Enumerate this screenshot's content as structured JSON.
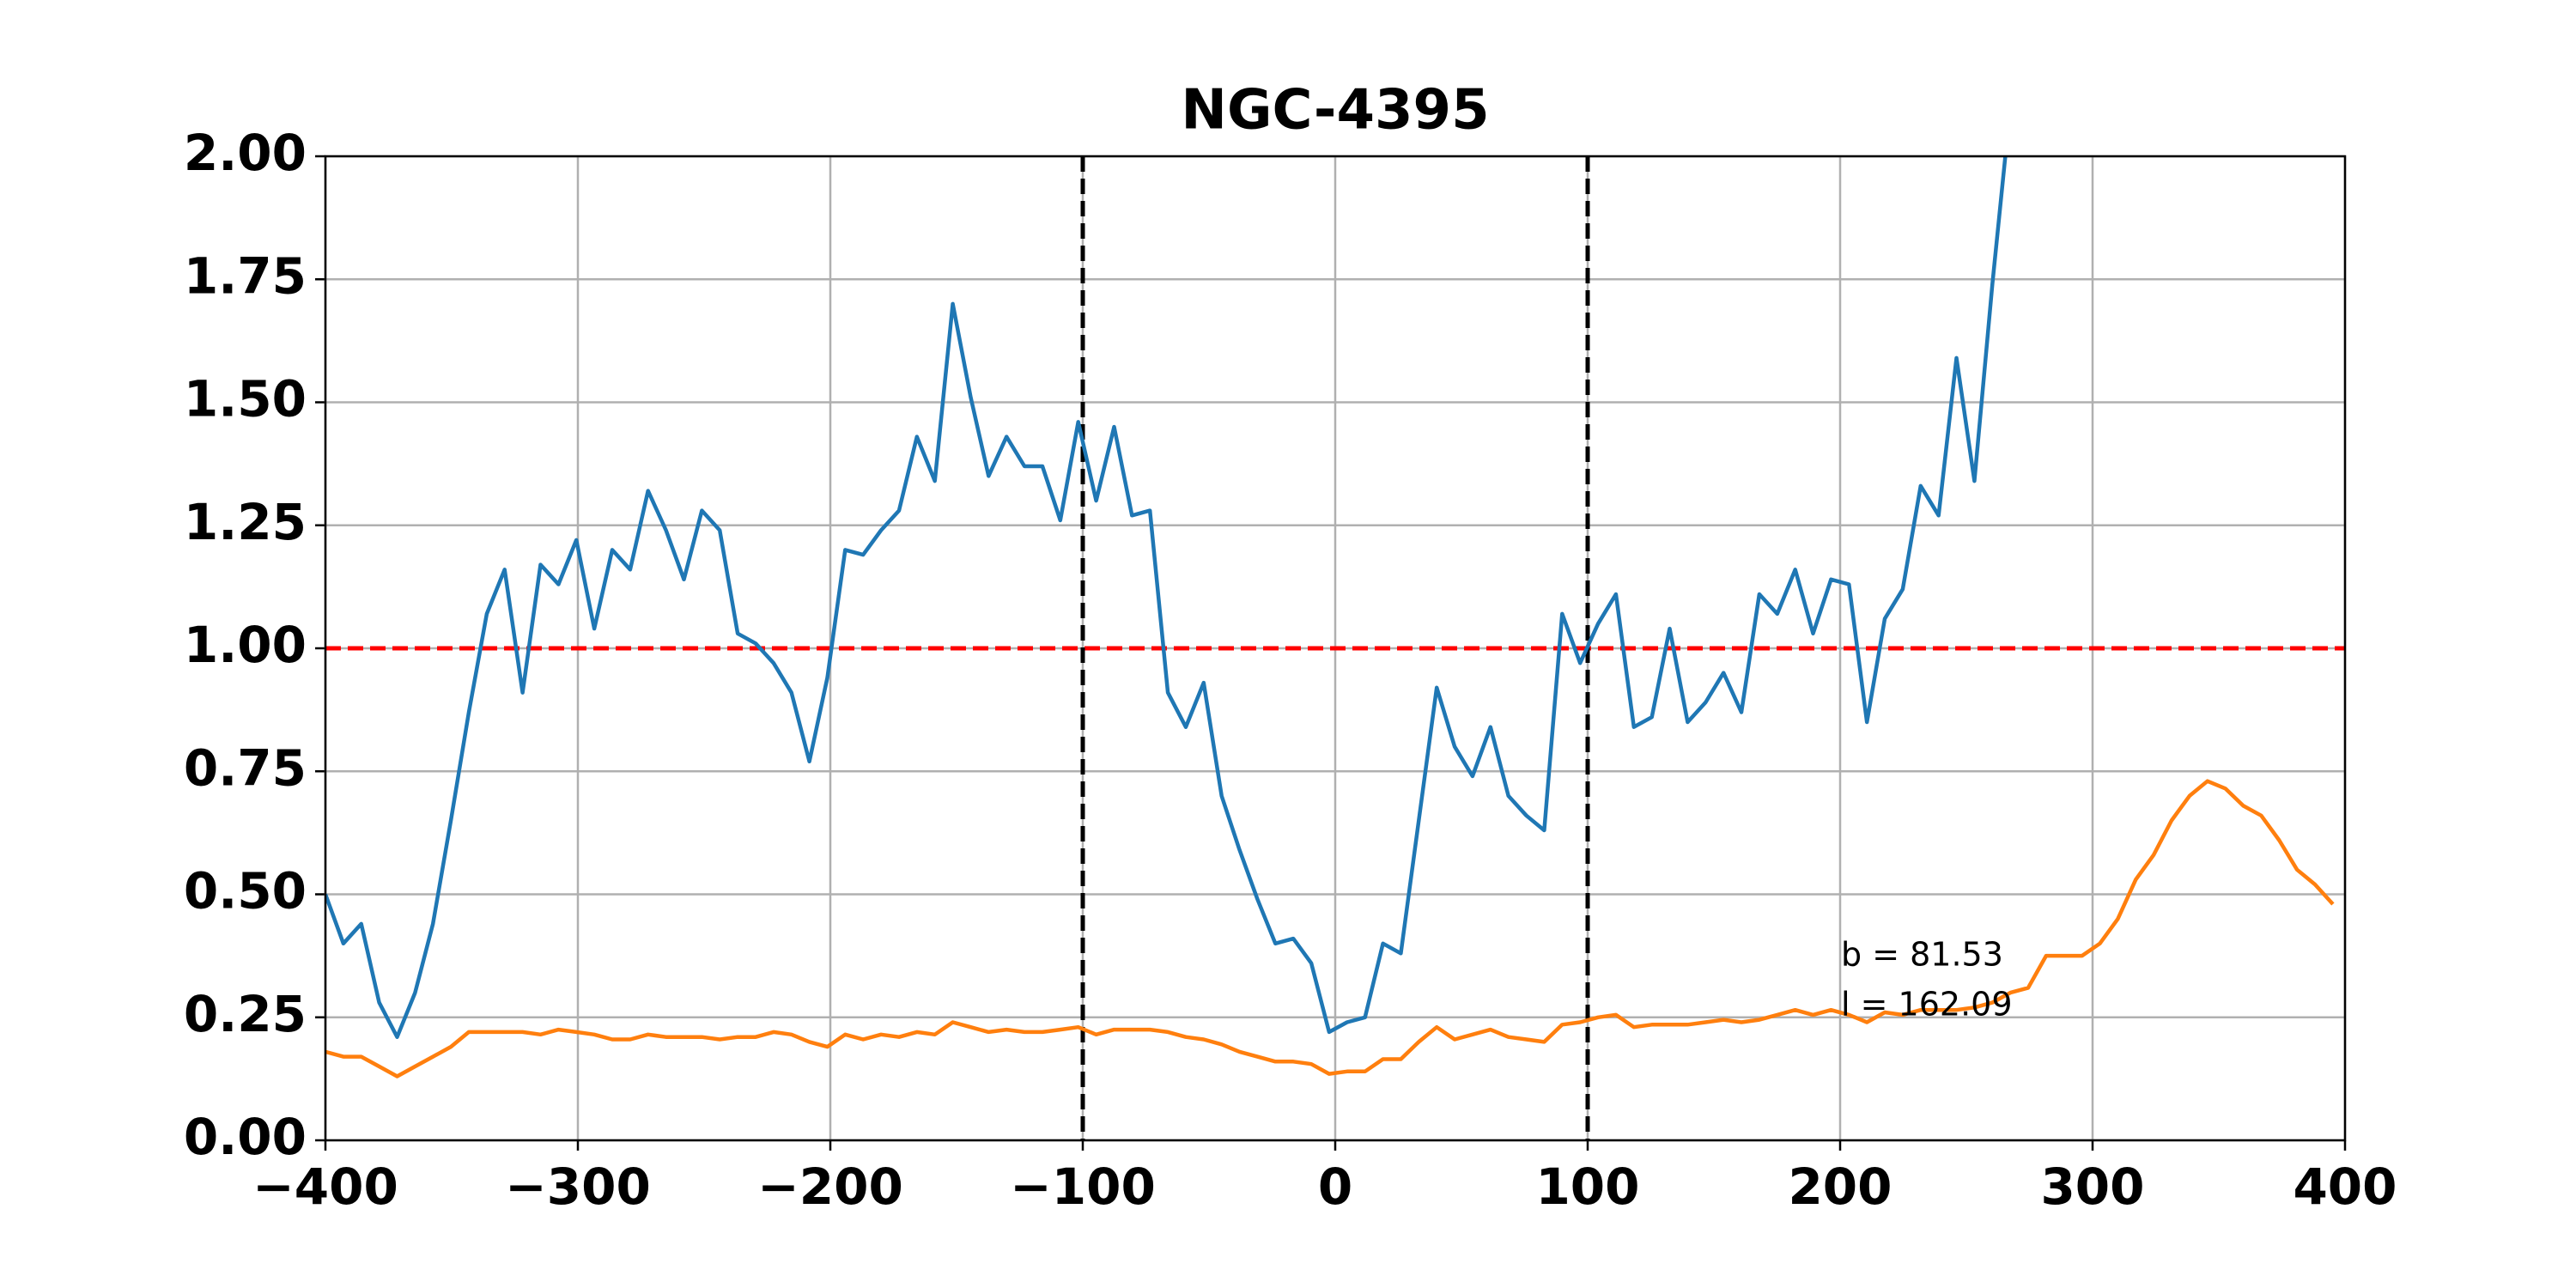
{
  "chart_data": {
    "type": "line",
    "title": "NGC-4395",
    "x": [
      -400,
      -392.9,
      -385.8,
      -378.7,
      -371.6,
      -364.5,
      -357.4,
      -350.3,
      -343.2,
      -336.1,
      -329,
      -321.9,
      -314.8,
      -307.7,
      -300.6,
      -293.5,
      -286.4,
      -279.3,
      -272.2,
      -265.1,
      -258,
      -250.9,
      -243.8,
      -236.7,
      -229.6,
      -222.5,
      -215.4,
      -208.3,
      -201.2,
      -194.1,
      -187,
      -179.9,
      -172.8,
      -165.7,
      -158.6,
      -151.5,
      -144.4,
      -137.3,
      -130.2,
      -123.1,
      -116,
      -108.9,
      -101.8,
      -94.7,
      -87.6,
      -80.5,
      -73.4,
      -66.3,
      -59.2,
      -52.1,
      -45,
      -37.9,
      -30.8,
      -23.7,
      -16.6,
      -9.5,
      -2.4,
      4.7,
      11.8,
      18.9,
      26,
      33.1,
      40.2,
      47.3,
      54.4,
      61.5,
      68.6,
      75.7,
      82.8,
      89.9,
      97,
      104.1,
      111.2,
      118.3,
      125.4,
      132.5,
      139.6,
      146.7,
      153.8,
      160.9,
      168,
      175.1,
      182.2,
      189.3,
      196.4,
      203.5,
      210.6,
      217.7,
      224.8,
      231.9,
      239,
      246.1,
      253.2,
      260.3,
      267.4,
      274.5,
      281.6,
      288.7,
      295.8,
      302.9,
      310,
      317.1,
      324.2,
      331.3,
      338.4,
      345.5,
      352.6,
      359.7,
      366.8,
      373.9,
      381,
      388.1,
      395.2
    ],
    "series": [
      {
        "color": "#1f77b4",
        "values": [
          0.5,
          0.4,
          0.44,
          0.28,
          0.21,
          0.3,
          0.44,
          0.65,
          0.87,
          1.07,
          1.16,
          0.91,
          1.17,
          1.13,
          1.22,
          1.04,
          1.2,
          1.16,
          1.32,
          1.24,
          1.14,
          1.28,
          1.24,
          1.03,
          1.01,
          0.97,
          0.91,
          0.77,
          0.94,
          1.2,
          1.19,
          1.24,
          1.28,
          1.43,
          1.34,
          1.7,
          1.51,
          1.35,
          1.43,
          1.37,
          1.37,
          1.26,
          1.46,
          1.3,
          1.45,
          1.27,
          1.28,
          0.91,
          0.84,
          0.93,
          0.7,
          0.59,
          0.49,
          0.4,
          0.41,
          0.36,
          0.22,
          0.24,
          0.25,
          0.4,
          0.38,
          0.65,
          0.92,
          0.8,
          0.74,
          0.84,
          0.7,
          0.66,
          0.63,
          1.07,
          0.97,
          1.05,
          1.11,
          0.84,
          0.86,
          1.04,
          0.85,
          0.89,
          0.95,
          0.87,
          1.11,
          1.07,
          1.16,
          1.03,
          1.14,
          1.13,
          0.85,
          1.06,
          1.12,
          1.33,
          1.27,
          1.59,
          1.34,
          1.74,
          2.1,
          null,
          null,
          null,
          null,
          null,
          null,
          null,
          null,
          null,
          null,
          null,
          null,
          null,
          null,
          null,
          null,
          null,
          null
        ]
      },
      {
        "color": "#ff7f0e",
        "values": [
          0.18,
          0.17,
          0.17,
          0.15,
          0.13,
          0.15,
          0.17,
          0.19,
          0.22,
          0.22,
          0.22,
          0.22,
          0.215,
          0.225,
          0.22,
          0.215,
          0.205,
          0.205,
          0.215,
          0.21,
          0.21,
          0.21,
          0.205,
          0.21,
          0.21,
          0.22,
          0.215,
          0.2,
          0.19,
          0.215,
          0.205,
          0.215,
          0.21,
          0.22,
          0.215,
          0.24,
          0.23,
          0.22,
          0.225,
          0.22,
          0.22,
          0.225,
          0.23,
          0.215,
          0.225,
          0.225,
          0.225,
          0.22,
          0.21,
          0.205,
          0.195,
          0.18,
          0.17,
          0.16,
          0.16,
          0.155,
          0.135,
          0.14,
          0.14,
          0.165,
          0.165,
          0.2,
          0.23,
          0.205,
          0.215,
          0.225,
          0.21,
          0.205,
          0.2,
          0.235,
          0.24,
          0.25,
          0.255,
          0.23,
          0.235,
          0.235,
          0.235,
          0.24,
          0.245,
          0.24,
          0.245,
          0.255,
          0.265,
          0.255,
          0.265,
          0.255,
          0.24,
          0.26,
          0.255,
          0.265,
          0.265,
          0.265,
          0.27,
          0.28,
          0.3,
          0.31,
          0.375,
          0.375,
          0.375,
          0.4,
          0.45,
          0.53,
          0.58,
          0.65,
          0.7,
          0.73,
          0.715,
          0.68,
          0.66,
          0.61,
          0.55,
          0.52,
          0.48
        ]
      }
    ],
    "hline": {
      "value": 1.0,
      "color": "#ff0000"
    },
    "vlines": [
      -100,
      100
    ],
    "annotations": [
      "b = 81.53",
      "l = 162.09"
    ],
    "xlim": [
      -400,
      400
    ],
    "xticks": [
      {
        "value": -400,
        "label": "−400"
      },
      {
        "value": -300,
        "label": "−300"
      },
      {
        "value": -200,
        "label": "−200"
      },
      {
        "value": -100,
        "label": "−100"
      },
      0,
      100,
      200,
      300,
      400
    ],
    "ylim": [
      0,
      2
    ],
    "yticks": [
      {
        "value": 0,
        "label": "0.00"
      },
      {
        "value": 0.25,
        "label": "0.25"
      },
      {
        "value": 0.5,
        "label": "0.50"
      },
      {
        "value": 0.75,
        "label": "0.75"
      },
      {
        "value": 1,
        "label": "1.00"
      },
      {
        "value": 1.25,
        "label": "1.25"
      },
      {
        "value": 1.5,
        "label": "1.50"
      },
      {
        "value": 1.75,
        "label": "1.75"
      },
      {
        "value": 2,
        "label": "2.00"
      }
    ],
    "grid": true
  }
}
